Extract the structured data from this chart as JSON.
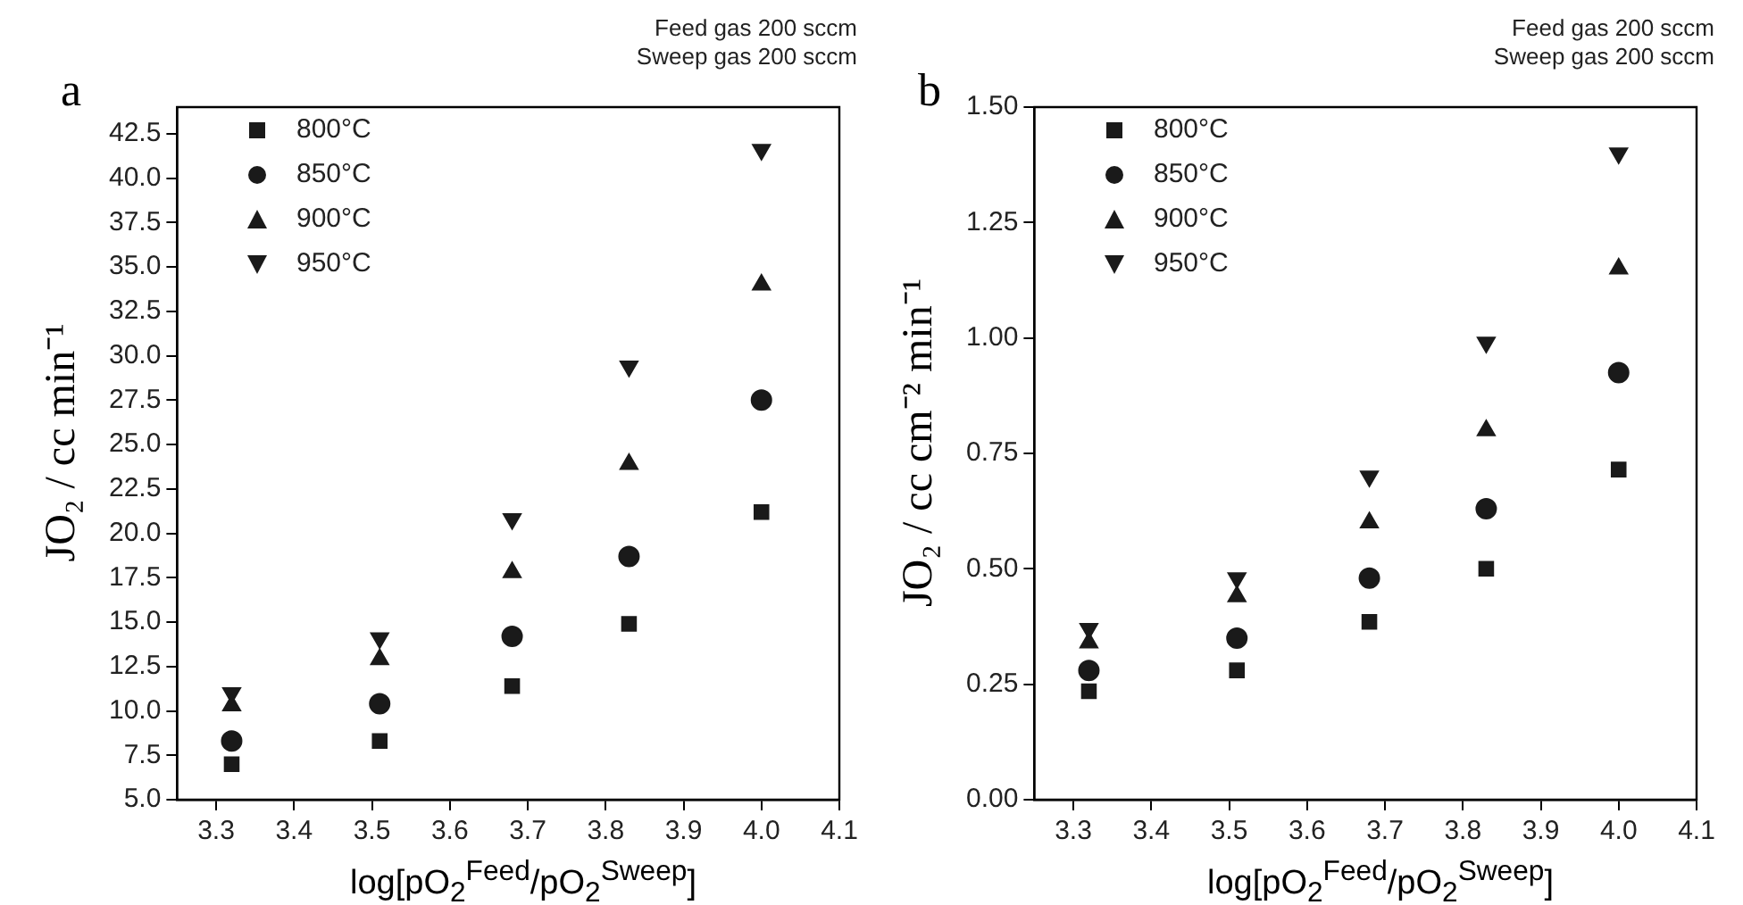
{
  "chart_data": [
    {
      "type": "scatter",
      "title": "a",
      "xlabel": "log[pO$_{2}$$^{Feed}$/pO$_{2}$$^{Sweep}$]",
      "ylabel": "JO₂ / cc min⁻¹",
      "annotations": [
        "Feed gas 200 sccm",
        "Sweep gas 200 sccm"
      ],
      "legend": "top left",
      "grid": false,
      "x": [
        3.32,
        3.51,
        3.68,
        3.83,
        4.0
      ],
      "series": [
        {
          "name": "800°C",
          "color": "#1a1a1a",
          "marker": "square",
          "values": [
            7.0,
            8.3,
            11.4,
            14.9,
            21.2
          ]
        },
        {
          "name": "850°C",
          "color": "#1a1a1a",
          "marker": "circle",
          "values": [
            8.3,
            10.4,
            14.2,
            18.7,
            27.5
          ]
        },
        {
          "name": "900°C",
          "color": "#1a1a1a",
          "marker": "triangle",
          "values": [
            10.3,
            12.9,
            17.8,
            23.9,
            34.0
          ]
        },
        {
          "name": "950°C",
          "color": "#1a1a1a",
          "marker": "triangle-down",
          "values": [
            11.0,
            14.1,
            20.8,
            29.4,
            41.6
          ]
        }
      ],
      "xlim": [
        3.25,
        4.1
      ],
      "xticks": [
        3.3,
        3.4,
        3.5,
        3.6,
        3.7,
        3.8,
        3.9,
        {
          "value": 4,
          "label": "4.0"
        },
        4.1
      ],
      "ylim": [
        5,
        44
      ],
      "yticks": [
        {
          "value": 5,
          "label": "5.0"
        },
        7.5,
        {
          "value": 10,
          "label": "10.0"
        },
        12.5,
        {
          "value": 15,
          "label": "15.0"
        },
        17.5,
        {
          "value": 20,
          "label": "20.0"
        },
        22.5,
        {
          "value": 25,
          "label": "25.0"
        },
        27.5,
        {
          "value": 30,
          "label": "30.0"
        },
        32.5,
        {
          "value": 35,
          "label": "35.0"
        },
        37.5,
        {
          "value": 40,
          "label": "40.0"
        },
        42.5
      ]
    },
    {
      "type": "scatter",
      "title": "b",
      "xlabel": "log[pO$_{2}$$^{Feed}$/pO$_{2}$$^{Sweep}$]",
      "ylabel": "JO₂ / cc cm⁻² min⁻¹",
      "annotations": [
        "Feed gas 200 sccm",
        "Sweep gas 200 sccm"
      ],
      "legend": "top left",
      "grid": false,
      "x": [
        3.32,
        3.51,
        3.68,
        3.83,
        4.0
      ],
      "series": [
        {
          "name": "800°C",
          "color": "#1a1a1a",
          "marker": "square",
          "values": [
            0.235,
            0.28,
            0.385,
            0.5,
            0.715
          ]
        },
        {
          "name": "850°C",
          "color": "#1a1a1a",
          "marker": "circle",
          "values": [
            0.28,
            0.35,
            0.48,
            0.63,
            0.925
          ]
        },
        {
          "name": "900°C",
          "color": "#1a1a1a",
          "marker": "triangle",
          "values": [
            0.34,
            0.44,
            0.6,
            0.8,
            1.15
          ]
        },
        {
          "name": "950°C",
          "color": "#1a1a1a",
          "marker": "triangle-down",
          "values": [
            0.37,
            0.48,
            0.7,
            0.99,
            1.4
          ]
        }
      ],
      "xlim": [
        3.25,
        4.1
      ],
      "xticks": [
        3.3,
        3.4,
        3.5,
        3.6,
        3.7,
        3.8,
        3.9,
        {
          "value": 4,
          "label": "4.0"
        },
        4.1
      ],
      "ylim": [
        0,
        1.5
      ],
      "yticks": [
        {
          "value": 0,
          "label": "0.00"
        },
        0.25,
        {
          "value": 0.5,
          "label": "0.50"
        },
        0.75,
        {
          "value": 1,
          "label": "1.00"
        },
        1.25,
        {
          "value": 1.5,
          "label": "1.50"
        }
      ]
    }
  ]
}
